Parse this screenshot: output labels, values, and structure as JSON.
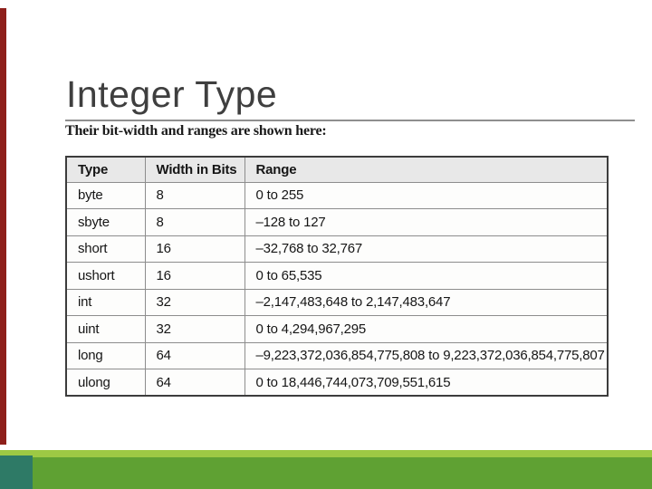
{
  "slide": {
    "title": "Integer Type",
    "subtitle": "Their bit-width and ranges are shown here:"
  },
  "table": {
    "headers": [
      "Type",
      "Width in Bits",
      "Range"
    ],
    "rows": [
      [
        "byte",
        "8",
        "0 to 255"
      ],
      [
        "sbyte",
        "8",
        "–128 to 127"
      ],
      [
        "short",
        "16",
        "–32,768 to 32,767"
      ],
      [
        "ushort",
        "16",
        "0 to 65,535"
      ],
      [
        "int",
        "32",
        "–2,147,483,648 to 2,147,483,647"
      ],
      [
        "uint",
        "32",
        "0 to 4,294,967,295"
      ],
      [
        "long",
        "64",
        "–9,223,372,036,854,775,808 to 9,223,372,036,854,775,807"
      ],
      [
        "ulong",
        "64",
        "0 to 18,446,744,073,709,551,615"
      ]
    ]
  },
  "colors": {
    "left_accent_bar": "#8e1f1b",
    "footer_band_light": "#9dc944",
    "footer_band_dark": "#5fa133",
    "footer_corner_square": "#2e7a66",
    "table_header_background": "#e8e8e8",
    "title_text": "#3f3f3f"
  }
}
